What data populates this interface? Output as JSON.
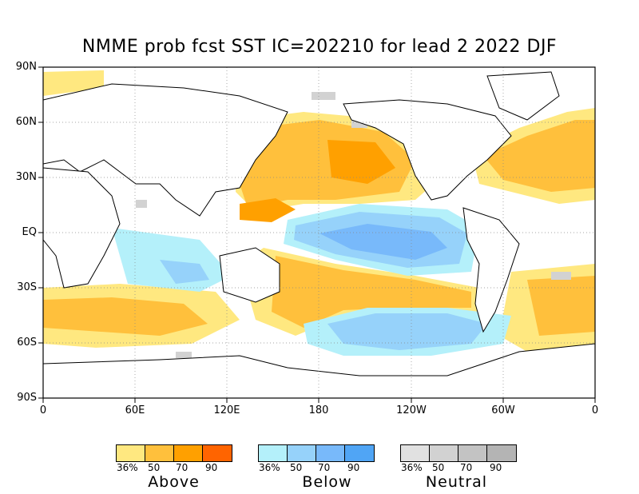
{
  "title": "NMME prob fcst SST IC=202210 for lead 2 2022 DJF",
  "y_axis_labels": [
    "90N",
    "60N",
    "30N",
    "EQ",
    "30S",
    "60S",
    "90S"
  ],
  "x_axis_labels": [
    "0",
    "60E",
    "120E",
    "180",
    "120W",
    "60W",
    "0"
  ],
  "legends": [
    {
      "name": "Above",
      "ticks": [
        "36%",
        "50",
        "70",
        "90"
      ],
      "colors": [
        "#ffe880",
        "#ffc03c",
        "#ffa000",
        "#ff6400"
      ]
    },
    {
      "name": "Below",
      "ticks": [
        "36%",
        "50",
        "70",
        "90"
      ],
      "colors": [
        "#b4f0fa",
        "#96d2fa",
        "#78b9fa",
        "#50a5f5"
      ]
    },
    {
      "name": "Neutral",
      "ticks": [
        "36%",
        "50",
        "70",
        "90"
      ],
      "colors": [
        "#e1e1e1",
        "#d2d2d2",
        "#c3c3c3",
        "#b4b4b4"
      ]
    }
  ]
}
